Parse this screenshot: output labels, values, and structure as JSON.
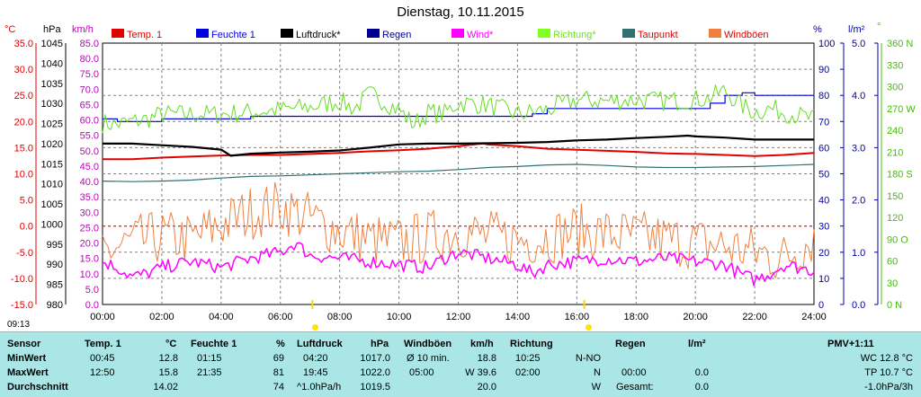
{
  "chart_data": {
    "type": "line",
    "title": "Dienstag, 10.11.2015",
    "x_ticks": [
      "00:00",
      "02:00",
      "04:00",
      "06:00",
      "08:00",
      "10:00",
      "12:00",
      "14:00",
      "16:00",
      "18:00",
      "20:00",
      "22:00",
      "24:00"
    ],
    "xlim": [
      0,
      24
    ],
    "grid": true,
    "legend_position": "top",
    "axes": {
      "temp": {
        "unit": "°C",
        "color": "#e00000",
        "lim": [
          -15,
          35
        ],
        "ticks": [
          "35.0",
          "30.0",
          "25.0",
          "20.0",
          "15.0",
          "10.0",
          "5.0",
          "0.0",
          "-5.0",
          "-10.0",
          "-15.0"
        ]
      },
      "press": {
        "unit": "hPa",
        "color": "#000000",
        "lim": [
          980,
          1045
        ],
        "ticks": [
          "1045",
          "1040",
          "1035",
          "1030",
          "1025",
          "1020",
          "1015",
          "1010",
          "1005",
          "1000",
          "995",
          "990",
          "985",
          "980"
        ]
      },
      "wind": {
        "unit": "km/h",
        "color": "#c000c0",
        "lim": [
          0,
          85
        ],
        "ticks": [
          "85.0",
          "80.0",
          "75.0",
          "70.0",
          "65.0",
          "60.0",
          "55.0",
          "50.0",
          "45.0",
          "40.0",
          "35.0",
          "30.0",
          "25.0",
          "20.0",
          "15.0",
          "10.0",
          "5.0",
          "0.0"
        ]
      },
      "hum": {
        "unit": "%",
        "color": "#0000a0",
        "lim": [
          0,
          100
        ],
        "ticks": [
          "100",
          "90",
          "80",
          "70",
          "60",
          "50",
          "40",
          "30",
          "20",
          "10",
          "0"
        ]
      },
      "rain": {
        "unit": "l/m²",
        "color": "#0000a0",
        "lim": [
          0,
          5
        ],
        "ticks": [
          "5.0",
          "4.0",
          "3.0",
          "2.0",
          "1.0",
          "0.0"
        ]
      },
      "dir": {
        "unit": "°",
        "color": "#40c000",
        "lim": [
          0,
          360
        ],
        "ticks": [
          "360 N",
          "330",
          "300",
          "270 W",
          "240",
          "210",
          "180 S",
          "150",
          "120",
          "90 O",
          "60",
          "30",
          "0 N"
        ]
      }
    },
    "legend": [
      {
        "label": "Temp. 1",
        "color": "#e00000",
        "text_color": "#e00000"
      },
      {
        "label": "Feuchte 1",
        "color": "#0000e0",
        "text_color": "#0000e0"
      },
      {
        "label": "Luftdruck*",
        "color": "#000000",
        "text_color": "#000000"
      },
      {
        "label": "Regen",
        "color": "#000090",
        "text_color": "#000090"
      },
      {
        "label": "Wind*",
        "color": "#ff00ff",
        "text_color": "#ff00ff"
      },
      {
        "label": "Richtung*",
        "color": "#80ff20",
        "text_color": "#70e020"
      },
      {
        "label": "Taupunkt",
        "color": "#307070",
        "text_color": "#e00000"
      },
      {
        "label": "Windböen",
        "color": "#f08040",
        "text_color": "#e00000"
      }
    ],
    "series": [
      {
        "name": "Temp. 1",
        "axis": "temp",
        "color": "#e00000",
        "width": 2,
        "x": [
          0,
          1,
          2,
          3,
          4,
          5,
          6,
          7,
          8,
          9,
          10,
          11,
          12,
          12.83,
          13,
          14,
          15,
          16,
          17,
          18,
          19,
          20,
          21,
          22,
          23,
          24
        ],
        "values": [
          12.8,
          12.8,
          13.1,
          13.3,
          13.5,
          13.6,
          13.6,
          13.8,
          14.0,
          14.3,
          14.5,
          14.8,
          15.3,
          15.8,
          15.6,
          15.3,
          14.8,
          14.6,
          14.4,
          14.2,
          13.9,
          13.8,
          13.6,
          13.4,
          13.6,
          14.0
        ]
      },
      {
        "name": "Luftdruck*",
        "axis": "press",
        "color": "#000000",
        "width": 2.2,
        "x": [
          0,
          1,
          2,
          3,
          4,
          4.33,
          5,
          6,
          7,
          8,
          9,
          10,
          11,
          12,
          13,
          14,
          15,
          16,
          17,
          18,
          19,
          19.75,
          20,
          21,
          22,
          23,
          24
        ],
        "values": [
          1020.0,
          1020.0,
          1019.6,
          1019.2,
          1018.5,
          1017.0,
          1017.5,
          1017.8,
          1018.0,
          1018.3,
          1019.0,
          1019.8,
          1020.0,
          1020.0,
          1020.1,
          1020.2,
          1020.4,
          1020.8,
          1021.0,
          1021.4,
          1021.7,
          1022.0,
          1021.8,
          1021.5,
          1021.0,
          1021.0,
          1021.0
        ]
      },
      {
        "name": "Feuchte 1",
        "axis": "hum",
        "color": "#0000e0",
        "width": 1.2,
        "step": true,
        "x": [
          0,
          0.5,
          1,
          1.5,
          2,
          3,
          4,
          5,
          6,
          7,
          8,
          9,
          10,
          11,
          12,
          13,
          14,
          14.5,
          15,
          16,
          17,
          18,
          19,
          20,
          20.5,
          21,
          21.58,
          22,
          23,
          24
        ],
        "values": [
          71,
          70,
          70,
          70,
          71,
          71,
          71,
          72,
          72,
          72,
          72,
          72,
          72,
          72,
          72,
          72,
          72,
          73,
          75,
          75,
          75,
          75,
          75,
          75,
          77,
          80,
          81,
          80,
          80,
          80
        ]
      },
      {
        "name": "Taupunkt",
        "axis": "temp",
        "color": "#307070",
        "width": 1.2,
        "x": [
          0,
          1,
          2,
          3,
          4,
          5,
          6,
          7,
          8,
          9,
          10,
          11,
          12,
          13,
          14,
          15,
          16,
          17,
          18,
          19,
          20,
          21,
          22,
          23,
          24
        ],
        "values": [
          8.6,
          8.5,
          8.6,
          8.8,
          9.2,
          9.5,
          9.6,
          9.8,
          10.0,
          10.2,
          10.4,
          10.5,
          10.8,
          11.2,
          11.4,
          11.7,
          11.8,
          11.6,
          11.3,
          11.2,
          11.2,
          11.3,
          11.4,
          11.6,
          11.8
        ]
      },
      {
        "name": "Richtung*",
        "axis": "dir",
        "color": "#66dd22",
        "width": 1,
        "jitter": true,
        "x": [
          0,
          0.5,
          1,
          1.5,
          2,
          3,
          4,
          5,
          6,
          7,
          8,
          8.5,
          9,
          9.5,
          10,
          10.5,
          11,
          11.5,
          12,
          13,
          14,
          15,
          16,
          17,
          18,
          19,
          20,
          20.5,
          21,
          21.5,
          22,
          22.5,
          23,
          24
        ],
        "values": [
          250,
          248,
          252,
          255,
          262,
          262,
          262,
          265,
          268,
          272,
          280,
          270,
          290,
          280,
          268,
          248,
          265,
          262,
          278,
          275,
          262,
          268,
          282,
          280,
          282,
          280,
          282,
          285,
          295,
          275,
          265,
          270,
          265,
          255
        ]
      },
      {
        "name": "Windböen",
        "axis": "wind",
        "color": "#f08040",
        "width": 1,
        "jitter": true,
        "x": [
          0,
          1,
          2,
          3,
          4,
          5,
          6,
          7,
          8,
          9,
          10,
          11,
          12,
          13,
          14,
          15,
          16,
          17,
          18,
          19,
          20,
          21,
          22,
          23,
          24
        ],
        "values": [
          17,
          20,
          22,
          21,
          26,
          30,
          32,
          28,
          24,
          21,
          20,
          22,
          24,
          22,
          21,
          22,
          24,
          23,
          22,
          21,
          20,
          19,
          17,
          15,
          22
        ]
      },
      {
        "name": "Wind*",
        "axis": "wind",
        "color": "#ff00ff",
        "width": 1.5,
        "jitter": true,
        "x": [
          0,
          0.5,
          1,
          1.5,
          2,
          3,
          4,
          5,
          6,
          6.5,
          7,
          8,
          9,
          10,
          11,
          11.5,
          12,
          13,
          14,
          14.5,
          15,
          16,
          17,
          18,
          19,
          20,
          21,
          21.5,
          22,
          22.5,
          23,
          24
        ],
        "values": [
          14,
          12,
          9,
          10,
          12,
          14,
          12,
          15,
          17,
          20,
          16,
          15,
          14,
          13,
          12,
          15,
          17,
          15,
          13,
          10,
          13,
          14,
          15,
          14,
          15,
          14,
          13,
          10,
          8,
          10,
          13,
          11
        ]
      }
    ],
    "markers_x": [
      7.08,
      16.25
    ],
    "time_label": "09:13",
    "sun_x": [
      7.08,
      16.25
    ]
  },
  "panel": {
    "headers": {
      "sensor": "Sensor",
      "temp": "Temp. 1",
      "temp_unit": "°C",
      "feuchte": "Feuchte 1",
      "feuchte_unit": "%",
      "druck": "Luftdruck",
      "druck_unit": "hPa",
      "boeen": "Windböen",
      "boeen_unit": "km/h",
      "richtung": "Richtung",
      "regen": "Regen",
      "regen_unit": "l/m²",
      "pmv": "PMV+1:11"
    },
    "row_labels": [
      "MinWert",
      "MaxWert",
      "Durchschnitt"
    ],
    "temp": {
      "min_time": "00:45",
      "min": "12.8",
      "max_time": "12:50",
      "max": "15.8",
      "avg": "14.02"
    },
    "feuchte": {
      "min_time": "01:15",
      "min": "69",
      "max_time": "21:35",
      "max": "81",
      "avg": "74"
    },
    "druck": {
      "min_time": "04:20",
      "min": "1017.0",
      "max_time": "19:45",
      "max": "1022.0",
      "trend": "^1.0hPa/h",
      "avg": "1019.5"
    },
    "boeen": {
      "r1_label": "Ø 10 min.",
      "r1": "18.8",
      "r2_time": "05:00",
      "r2": "W 39.6",
      "avg": "20.0"
    },
    "richtung": {
      "r1_time": "10:25",
      "r1": "N-NO",
      "r2_time": "02:00",
      "r2": "N",
      "avg": "W"
    },
    "regen": {
      "r2_time": "00:00",
      "r2": "0.0",
      "avg_label": "Gesamt:",
      "avg": "0.0"
    },
    "pmv": {
      "wc": "WC 12.8 °C",
      "tp": "TP 10.7 °C",
      "trend": "-1.0hPa/3h"
    }
  }
}
